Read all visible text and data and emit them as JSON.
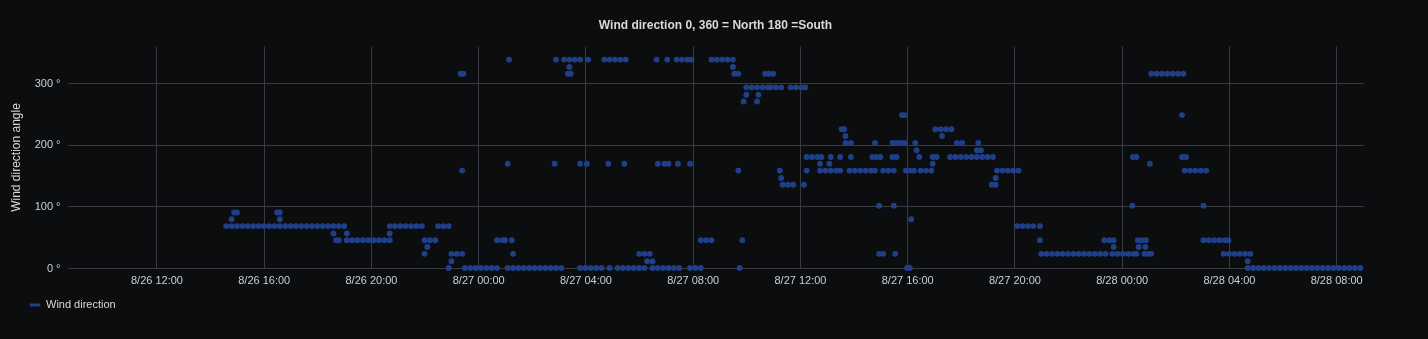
{
  "chart_data": {
    "type": "scatter",
    "title": "Wind direction 0, 360 = North 180 =South",
    "ylabel": "Wind direction angle",
    "xlim": [
      "--08-26T08:42",
      "--08-28T09:00"
    ],
    "xticks": [
      {
        "value": "--08-26T12:00",
        "label": "8/26 12:00"
      },
      {
        "value": "--08-26T16:00",
        "label": "8/26 16:00"
      },
      {
        "value": "--08-26T20:00",
        "label": "8/26 20:00"
      },
      {
        "value": "--08-27T00:00",
        "label": "8/27 00:00"
      },
      {
        "value": "--08-27T04:00",
        "label": "8/27 04:00"
      },
      {
        "value": "--08-27T08:00",
        "label": "8/27 08:00"
      },
      {
        "value": "--08-27T12:00",
        "label": "8/27 12:00"
      },
      {
        "value": "--08-27T16:00",
        "label": "8/27 16:00"
      },
      {
        "value": "--08-27T20:00",
        "label": "8/27 20:00"
      },
      {
        "value": "--08-28T00:00",
        "label": "8/28 00:00"
      },
      {
        "value": "--08-28T04:00",
        "label": "8/28 04:00"
      },
      {
        "value": "--08-28T08:00",
        "label": "8/28 08:00"
      }
    ],
    "ylim": [
      0,
      360
    ],
    "yticks": [
      {
        "value": 0,
        "label": "0 °"
      },
      {
        "value": 100,
        "label": "100 °"
      },
      {
        "value": 200,
        "label": "200 °"
      },
      {
        "value": 300,
        "label": "300 °"
      }
    ],
    "grid": true,
    "legend": "bottom",
    "marker": "circle",
    "series": [
      {
        "name": "Wind direction",
        "color": "#1f4088",
        "x": [
          "--08-26T14:36",
          "--08-26T14:48",
          "--08-26T15:00",
          "--08-26T15:12",
          "--08-26T15:24",
          "--08-26T15:36",
          "--08-26T15:48",
          "--08-26T16:00",
          "--08-26T16:12",
          "--08-26T16:24",
          "--08-26T16:36",
          "--08-26T16:48",
          "--08-26T17:00",
          "--08-26T17:12",
          "--08-26T17:24",
          "--08-26T17:36",
          "--08-26T17:48",
          "--08-26T18:00",
          "--08-26T18:12",
          "--08-26T18:24",
          "--08-26T18:36",
          "--08-26T14:54",
          "--08-26T15:00",
          "--08-26T14:48",
          "--08-26T16:30",
          "--08-26T16:36",
          "--08-26T16:36",
          "--08-26T18:36",
          "--08-26T18:42",
          "--08-26T18:48",
          "--08-26T18:48",
          "--08-26T19:00",
          "--08-26T19:06",
          "--08-26T19:06",
          "--08-26T19:18",
          "--08-26T19:30",
          "--08-26T19:42",
          "--08-26T19:54",
          "--08-26T20:06",
          "--08-26T20:18",
          "--08-26T20:30",
          "--08-26T20:42",
          "--08-26T20:42",
          "--08-26T20:42",
          "--08-26T20:54",
          "--08-26T21:06",
          "--08-26T21:18",
          "--08-26T21:30",
          "--08-26T21:42",
          "--08-26T21:54",
          "--08-26T22:30",
          "--08-26T22:42",
          "--08-26T22:54",
          "--08-26T22:00",
          "--08-26T22:06",
          "--08-26T22:00",
          "--08-26T22:12",
          "--08-26T22:24",
          "--08-26T23:00",
          "--08-26T23:12",
          "--08-26T23:24",
          "--08-26T23:00",
          "--08-26T22:54",
          "--08-26T23:21",
          "--08-26T23:27",
          "--08-26T23:24",
          "--08-26T23:30",
          "--08-26T23:42",
          "--08-26T23:54",
          "--08-27T00:06",
          "--08-27T00:18",
          "--08-27T00:30",
          "--08-27T00:42",
          "--08-27T01:06",
          "--08-27T01:18",
          "--08-27T01:30",
          "--08-27T01:42",
          "--08-27T01:54",
          "--08-27T02:06",
          "--08-27T02:18",
          "--08-27T02:30",
          "--08-27T02:42",
          "--08-27T02:54",
          "--08-27T03:06",
          "--08-27T03:48",
          "--08-27T04:00",
          "--08-27T04:12",
          "--08-27T04:24",
          "--08-27T04:36",
          "--08-27T04:54",
          "--08-27T05:12",
          "--08-27T05:24",
          "--08-27T05:36",
          "--08-27T05:48",
          "--08-27T06:00",
          "--08-27T06:12",
          "--08-27T06:30",
          "--08-27T06:42",
          "--08-27T06:54",
          "--08-27T07:06",
          "--08-27T07:18",
          "--08-27T07:30",
          "--08-27T07:54",
          "--08-27T08:06",
          "--08-27T08:18",
          "--08-27T09:45",
          "--08-27T01:09",
          "--08-27T02:54",
          "--08-27T03:12",
          "--08-27T03:24",
          "--08-27T03:36",
          "--08-27T03:48",
          "--08-27T04:06",
          "--08-27T04:42",
          "--08-27T04:54",
          "--08-27T05:06",
          "--08-27T05:18",
          "--08-27T05:30",
          "--08-27T06:39",
          "--08-27T07:03",
          "--08-27T07:24",
          "--08-27T07:36",
          "--08-27T07:48",
          "--08-27T07:57",
          "--08-27T08:42",
          "--08-27T08:54",
          "--08-27T09:06",
          "--08-27T09:18",
          "--08-27T09:30",
          "--08-27T03:24",
          "--08-27T09:30",
          "--08-27T03:21",
          "--08-27T03:27",
          "--08-27T09:33",
          "--08-27T09:42",
          "--08-27T01:06",
          "--08-27T02:51",
          "--08-27T03:48",
          "--08-27T04:03",
          "--08-27T04:51",
          "--08-27T05:27",
          "--08-27T06:42",
          "--08-27T06:57",
          "--08-27T07:06",
          "--08-27T07:27",
          "--08-27T07:54",
          "--08-27T00:42",
          "--08-27T00:54",
          "--08-27T01:00",
          "--08-27T01:15",
          "--08-27T01:18",
          "--08-27T06:00",
          "--08-27T06:12",
          "--08-27T06:24",
          "--08-27T06:18",
          "--08-27T06:30",
          "--08-27T09:42",
          "--08-27T08:18",
          "--08-27T08:30",
          "--08-27T08:42",
          "--08-27T09:51",
          "--08-27T10:00",
          "--08-27T10:12",
          "--08-27T10:24",
          "--08-27T10:36",
          "--08-27T10:48",
          "--08-27T10:54",
          "--08-27T11:06",
          "--08-27T11:18",
          "--08-27T11:39",
          "--08-27T11:51",
          "--08-27T12:03",
          "--08-27T12:12",
          "--08-27T10:00",
          "--08-27T10:27",
          "--08-27T09:54",
          "--08-27T10:24",
          "--08-27T10:42",
          "--08-27T10:51",
          "--08-27T11:00",
          "--08-27T11:15",
          "--08-27T11:18",
          "--08-27T11:21",
          "--08-27T11:33",
          "--08-27T11:45",
          "--08-27T12:09",
          "--08-27T12:15",
          "--08-27T12:15",
          "--08-27T12:27",
          "--08-27T12:39",
          "--08-27T12:48",
          "--08-27T13:09",
          "--08-27T13:30",
          "--08-27T13:54",
          "--08-27T14:42",
          "--08-27T14:51",
          "--08-27T15:00",
          "--08-27T15:27",
          "--08-27T15:36",
          "--08-27T12:45",
          "--08-27T13:06",
          "--08-27T12:45",
          "--08-27T12:57",
          "--08-27T13:09",
          "--08-27T13:21",
          "--08-27T13:30",
          "--08-27T13:51",
          "--08-27T14:03",
          "--08-27T14:15",
          "--08-27T14:27",
          "--08-27T14:39",
          "--08-27T14:48",
          "--08-27T15:06",
          "--08-27T15:18",
          "--08-27T15:30",
          "--08-27T15:57",
          "--08-27T16:06",
          "--08-27T16:15",
          "--08-27T13:33",
          "--08-27T13:39",
          "--08-27T13:42",
          "--08-27T13:42",
          "--08-27T13:54",
          "--08-27T14:48",
          "--08-27T15:27",
          "--08-27T15:36",
          "--08-27T15:45",
          "--08-27T15:54",
          "--08-27T16:18",
          "--08-27T14:57",
          "--08-27T15:30",
          "--08-27T14:57",
          "--08-27T15:06",
          "--08-27T15:33",
          "--08-27T15:48",
          "--08-27T15:54",
          "--08-27T16:09",
          "--08-27T16:00",
          "--08-27T16:06",
          "--08-27T16:21",
          "--08-27T16:27",
          "--08-27T16:30",
          "--08-27T16:42",
          "--08-27T16:54",
          "--08-27T16:57",
          "--08-27T16:57",
          "--08-27T17:06",
          "--08-27T17:03",
          "--08-27T17:15",
          "--08-27T17:27",
          "--08-27T17:39",
          "--08-27T17:18",
          "--08-27T17:36",
          "--08-27T17:48",
          "--08-27T18:00",
          "--08-27T18:12",
          "--08-27T18:24",
          "--08-27T18:36",
          "--08-27T18:48",
          "--08-27T19:00",
          "--08-27T19:12",
          "--08-27T17:51",
          "--08-27T18:03",
          "--08-27T18:39",
          "--08-27T18:36",
          "--08-27T18:45",
          "--08-27T19:09",
          "--08-27T19:18",
          "--08-27T19:18",
          "--08-27T19:21",
          "--08-27T19:33",
          "--08-27T19:45",
          "--08-27T19:57",
          "--08-27T20:09",
          "--08-27T20:06",
          "--08-27T20:18",
          "--08-27T20:30",
          "--08-27T20:42",
          "--08-27T20:57",
          "--08-27T20:57",
          "--08-27T21:00",
          "--08-27T21:12",
          "--08-27T21:24",
          "--08-27T21:36",
          "--08-27T21:48",
          "--08-27T22:00",
          "--08-27T22:12",
          "--08-27T22:24",
          "--08-27T22:36",
          "--08-27T22:48",
          "--08-27T23:00",
          "--08-27T23:12",
          "--08-27T23:24",
          "--08-27T23:21",
          "--08-27T23:33",
          "--08-27T23:42",
          "--08-27T23:42",
          "--08-27T23:39",
          "--08-27T23:51",
          "--08-28T00:03",
          "--08-28T00:15",
          "--08-28T00:27",
          "--08-28T00:33",
          "--08-28T00:51",
          "--08-28T01:00",
          "--08-28T01:06",
          "--08-28T00:25",
          "--08-28T00:33",
          "--08-28T00:24",
          "--08-28T00:36",
          "--08-28T00:45",
          "--08-28T00:54",
          "--08-28T00:38",
          "--08-28T00:53",
          "--08-28T01:03",
          "--08-28T01:06",
          "--08-28T01:18",
          "--08-28T01:30",
          "--08-28T01:42",
          "--08-28T01:54",
          "--08-28T02:06",
          "--08-28T02:18",
          "--08-28T02:15",
          "--08-28T02:15",
          "--08-28T02:24",
          "--08-28T02:21",
          "--08-28T02:33",
          "--08-28T02:45",
          "--08-28T02:57",
          "--08-28T03:09",
          "--08-28T03:03",
          "--08-28T03:03",
          "--08-28T03:15",
          "--08-28T03:27",
          "--08-28T03:39",
          "--08-28T03:51",
          "--08-28T03:59",
          "--08-28T03:48",
          "--08-28T04:00",
          "--08-28T04:12",
          "--08-28T04:24",
          "--08-28T04:36",
          "--08-28T04:48",
          "--08-28T04:42",
          "--08-28T04:42",
          "--08-28T04:54",
          "--08-28T05:06",
          "--08-28T05:18",
          "--08-28T05:30",
          "--08-28T05:42",
          "--08-28T05:54",
          "--08-28T06:06",
          "--08-28T06:18",
          "--08-28T06:30",
          "--08-28T06:42",
          "--08-28T06:54",
          "--08-28T07:06",
          "--08-28T07:18",
          "--08-28T07:30",
          "--08-28T07:42",
          "--08-28T07:54",
          "--08-28T08:06",
          "--08-28T08:18",
          "--08-28T08:30",
          "--08-28T08:42",
          "--08-28T08:54"
        ],
        "values": [
          68,
          68,
          68,
          68,
          68,
          68,
          68,
          68,
          68,
          68,
          68,
          68,
          68,
          68,
          68,
          68,
          68,
          68,
          68,
          68,
          68,
          90,
          90,
          79,
          90,
          90,
          79,
          56,
          45,
          45,
          68,
          68,
          56,
          45,
          45,
          45,
          45,
          45,
          45,
          45,
          45,
          45,
          56,
          68,
          68,
          68,
          68,
          68,
          68,
          68,
          68,
          68,
          68,
          23,
          34,
          45,
          45,
          45,
          23,
          23,
          23,
          11,
          0,
          315,
          315,
          158,
          0,
          0,
          0,
          0,
          0,
          0,
          0,
          0,
          0,
          0,
          0,
          0,
          0,
          0,
          0,
          0,
          0,
          0,
          0,
          0,
          0,
          0,
          0,
          0,
          0,
          0,
          0,
          0,
          0,
          0,
          0,
          0,
          0,
          0,
          0,
          0,
          0,
          0,
          0,
          0,
          338,
          338,
          338,
          338,
          338,
          338,
          338,
          338,
          338,
          338,
          338,
          338,
          338,
          338,
          338,
          338,
          338,
          338,
          338,
          338,
          338,
          338,
          338,
          326,
          326,
          315,
          315,
          315,
          315,
          169,
          169,
          169,
          169,
          169,
          169,
          169,
          169,
          169,
          169,
          169,
          45,
          45,
          45,
          45,
          23,
          23,
          23,
          23,
          11,
          11,
          158,
          45,
          45,
          45,
          45,
          293,
          293,
          293,
          293,
          293,
          293,
          293,
          293,
          293,
          293,
          293,
          293,
          281,
          281,
          270,
          270,
          315,
          315,
          315,
          158,
          146,
          135,
          135,
          135,
          135,
          158,
          180,
          180,
          180,
          180,
          180,
          180,
          180,
          180,
          180,
          180,
          180,
          180,
          169,
          169,
          158,
          158,
          158,
          158,
          158,
          158,
          158,
          158,
          158,
          158,
          158,
          158,
          158,
          158,
          158,
          158,
          158,
          225,
          225,
          214,
          203,
          203,
          203,
          203,
          203,
          203,
          203,
          203,
          101,
          101,
          23,
          23,
          23,
          248,
          248,
          79,
          0,
          0,
          191,
          180,
          158,
          158,
          158,
          169,
          180,
          180,
          225,
          225,
          225,
          225,
          214,
          180,
          180,
          180,
          180,
          180,
          180,
          180,
          180,
          180,
          203,
          203,
          203,
          191,
          191,
          135,
          135,
          146,
          158,
          158,
          158,
          158,
          158,
          68,
          68,
          68,
          68,
          68,
          45,
          23,
          23,
          23,
          23,
          23,
          23,
          23,
          23,
          23,
          23,
          23,
          23,
          23,
          45,
          45,
          45,
          34,
          23,
          23,
          23,
          23,
          23,
          23,
          23,
          23,
          23,
          180,
          180,
          101,
          45,
          45,
          45,
          34,
          34,
          169,
          315,
          315,
          315,
          315,
          315,
          315,
          315,
          248,
          180,
          180,
          158,
          158,
          158,
          158,
          158,
          101,
          45,
          45,
          45,
          45,
          45,
          45,
          23,
          23,
          23,
          23,
          23,
          23,
          11,
          0,
          0,
          0,
          0,
          0,
          0,
          0,
          0,
          0,
          0,
          0,
          0,
          0,
          0,
          0,
          0,
          0,
          0,
          0,
          0,
          0,
          0
        ]
      }
    ]
  }
}
